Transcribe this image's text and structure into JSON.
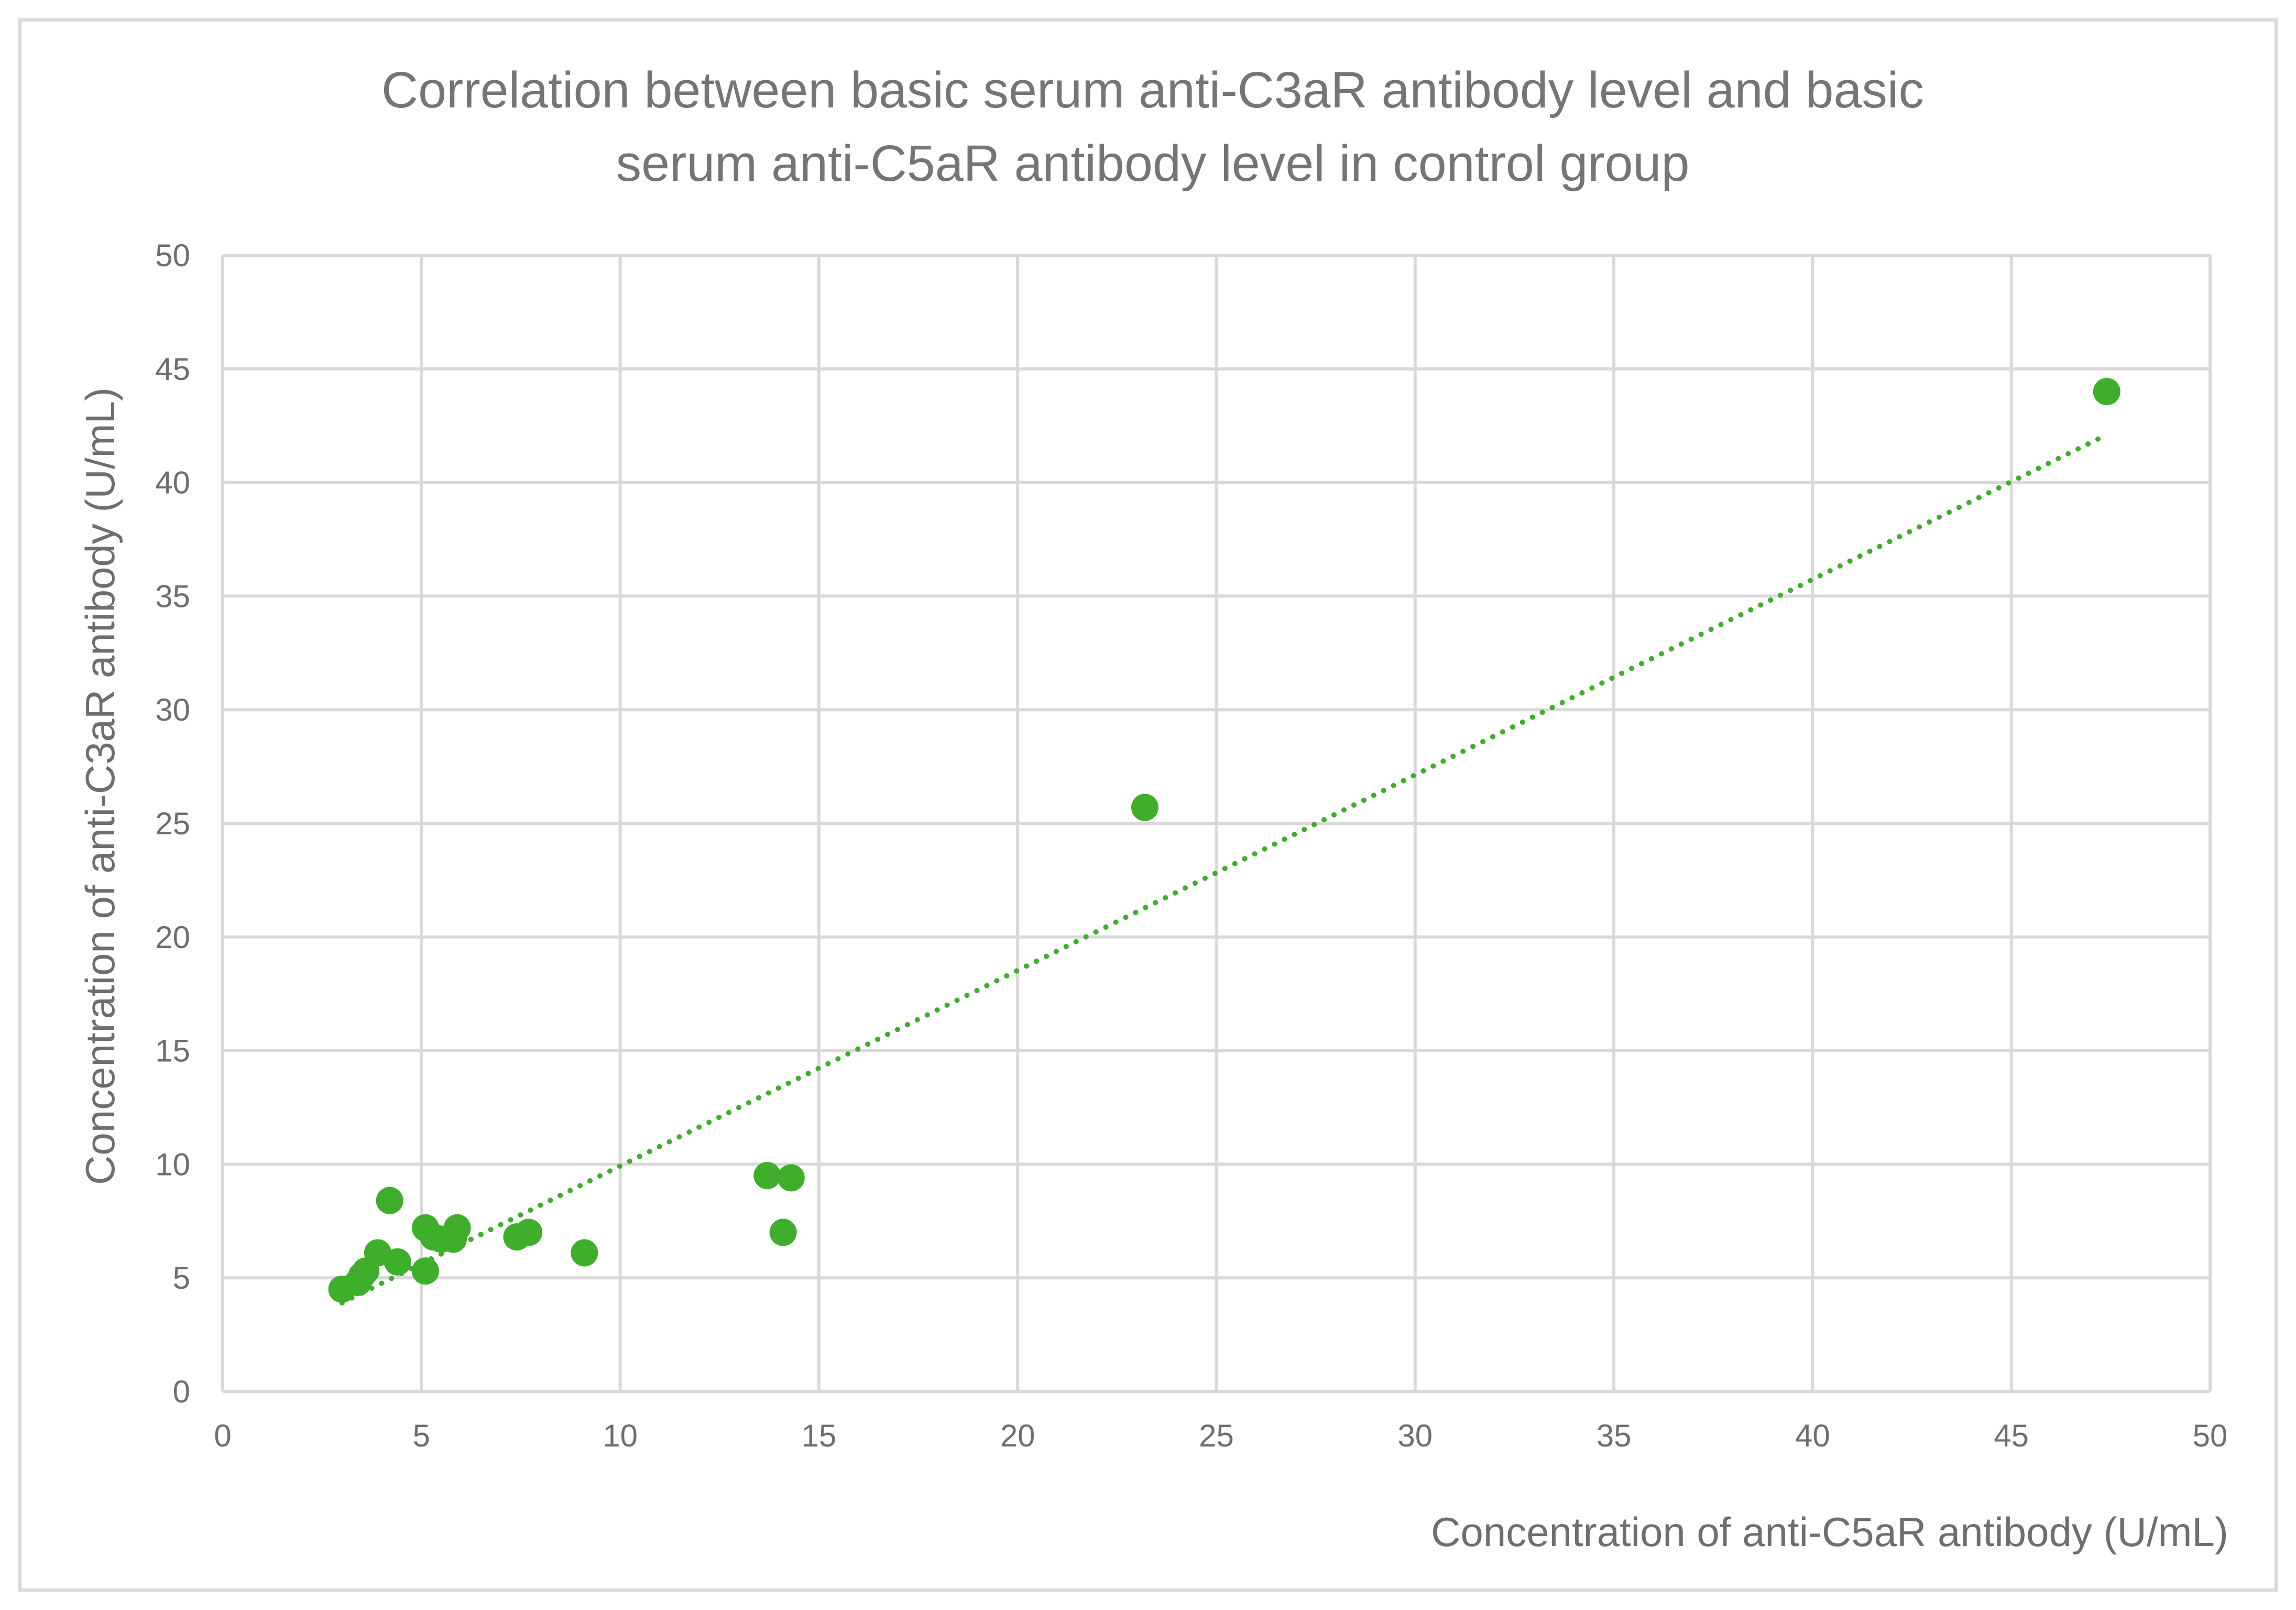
{
  "chart_data": {
    "type": "scatter",
    "title": "Correlation between basic serum anti-C3aR antibody level and basic serum anti-C5aR antibody level in control group",
    "title_lines": [
      "Correlation between basic serum anti-C3aR antibody level and basic",
      "serum anti-C5aR antibody level in control group"
    ],
    "xlabel": "Concentration of anti-C5aR antibody (U/mL)",
    "ylabel": "Concentration of anti-C3aR antibody (U/mL)",
    "xlim": [
      0,
      50
    ],
    "ylim": [
      0,
      50
    ],
    "x_ticks": [
      "0",
      "5",
      "10",
      "15",
      "20",
      "25",
      "30",
      "35",
      "40",
      "45",
      "50"
    ],
    "y_ticks": [
      "0",
      "5",
      "10",
      "15",
      "20",
      "25",
      "30",
      "35",
      "40",
      "45",
      "50"
    ],
    "grid": true,
    "legend": "none",
    "marker_color": "#3fae2a",
    "series": [
      {
        "name": "Control group",
        "points": [
          {
            "x": 3.0,
            "y": 4.5
          },
          {
            "x": 3.4,
            "y": 4.8
          },
          {
            "x": 3.5,
            "y": 5.1
          },
          {
            "x": 3.6,
            "y": 5.3
          },
          {
            "x": 3.9,
            "y": 6.1
          },
          {
            "x": 4.2,
            "y": 8.4
          },
          {
            "x": 4.4,
            "y": 5.7
          },
          {
            "x": 5.1,
            "y": 7.2
          },
          {
            "x": 5.1,
            "y": 5.3
          },
          {
            "x": 5.3,
            "y": 6.8
          },
          {
            "x": 5.5,
            "y": 6.7
          },
          {
            "x": 5.8,
            "y": 6.7
          },
          {
            "x": 5.9,
            "y": 7.2
          },
          {
            "x": 7.4,
            "y": 6.8
          },
          {
            "x": 7.7,
            "y": 7.0
          },
          {
            "x": 9.1,
            "y": 6.1
          },
          {
            "x": 13.7,
            "y": 9.5
          },
          {
            "x": 14.1,
            "y": 7.0
          },
          {
            "x": 14.3,
            "y": 9.4
          },
          {
            "x": 23.2,
            "y": 25.7
          },
          {
            "x": 47.4,
            "y": 44.0
          }
        ]
      }
    ],
    "trendline": {
      "type": "linear",
      "style": "dotted",
      "from": {
        "x": 3.0,
        "y": 3.9
      },
      "to": {
        "x": 47.4,
        "y": 42.1
      }
    }
  }
}
